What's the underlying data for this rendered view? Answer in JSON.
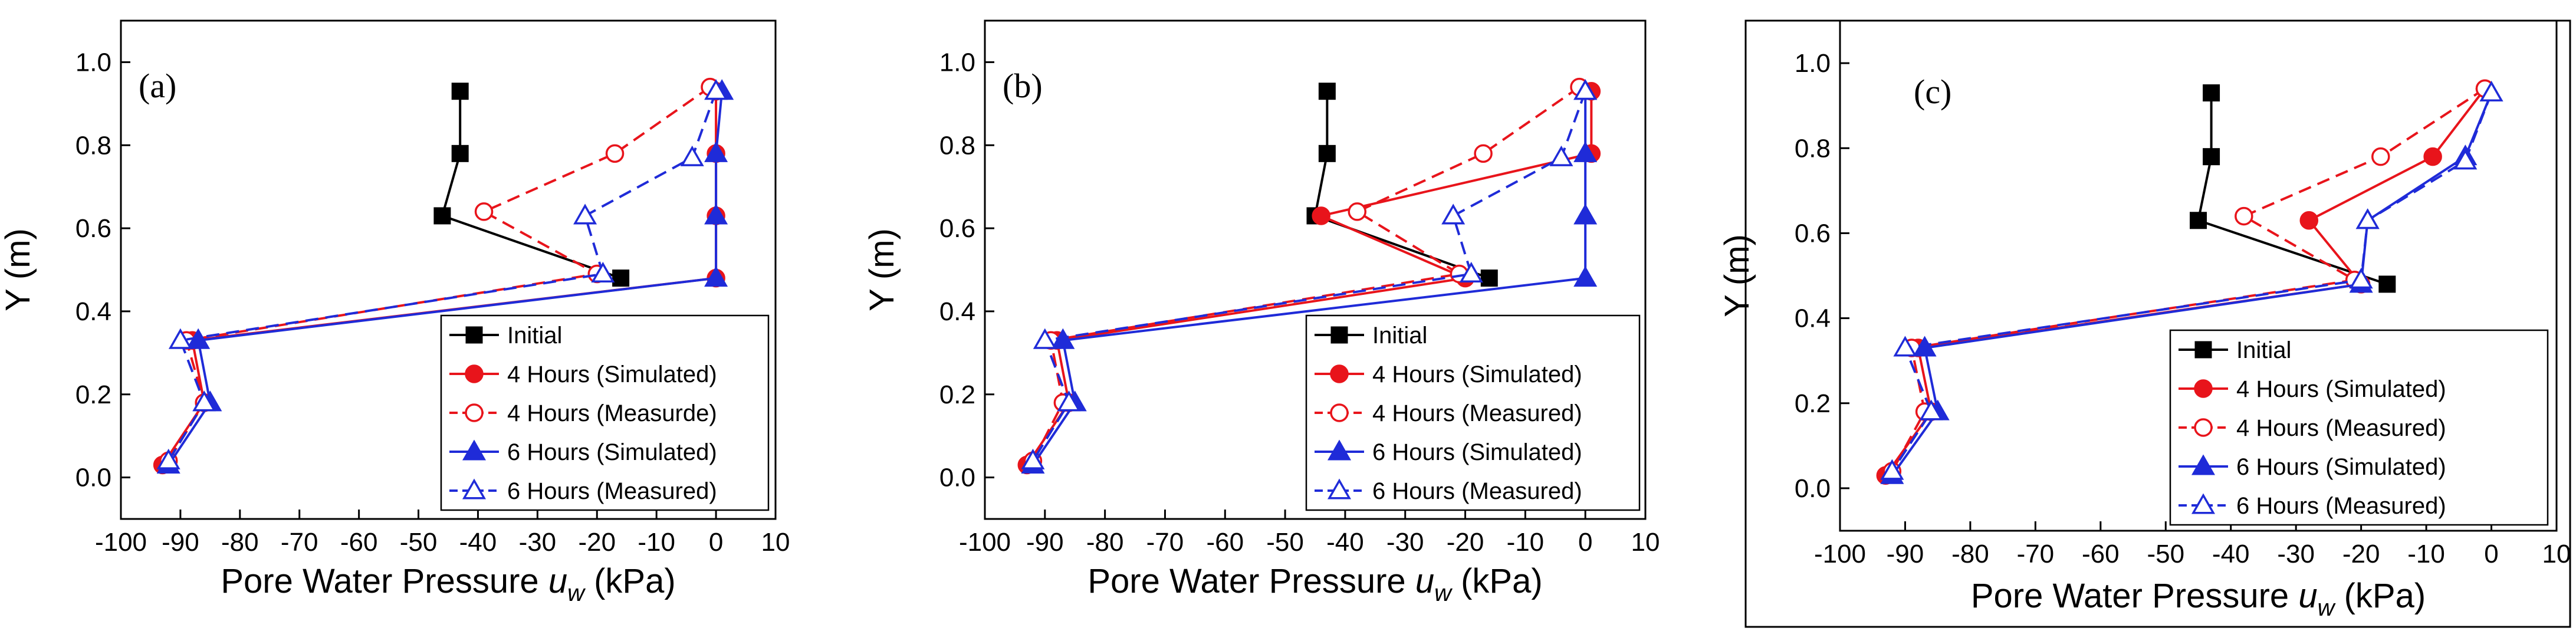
{
  "figure": {
    "panel_c_border_color": "#000000"
  },
  "chart_data": [
    {
      "type": "line",
      "panel_label": "(a)",
      "xlabel": "Pore Water Pressure",
      "xlabel_symbol": "u",
      "xlabel_subscript": "w",
      "xlabel_unit": "(kPa)",
      "ylabel": "Y (m)",
      "xlim": [
        -100,
        10
      ],
      "ylim": [
        -0.1,
        1.1
      ],
      "xticks": [
        "-100",
        "-90",
        "-80",
        "-70",
        "-60",
        "-50",
        "-40",
        "-30",
        "-20",
        "-10",
        "0",
        "10"
      ],
      "xtick_values": [
        -100,
        -90,
        -80,
        -70,
        -60,
        -50,
        -40,
        -30,
        -20,
        -10,
        0,
        10
      ],
      "yticks": [
        "0.0",
        "0.2",
        "0.4",
        "0.6",
        "0.8",
        "1.0"
      ],
      "ytick_values": [
        0.0,
        0.2,
        0.4,
        0.6,
        0.8,
        1.0
      ],
      "legend_position": "bottom-right",
      "series": [
        {
          "name": "Initial",
          "color": "#000000",
          "dash": "solid",
          "marker": "square",
          "filled": true,
          "x": [
            -43,
            -43,
            -46,
            -16
          ],
          "y": [
            0.93,
            0.78,
            0.63,
            0.48
          ]
        },
        {
          "name": "4 Hours (Simulated)",
          "color": "#e8141b",
          "dash": "solid",
          "marker": "circle",
          "filled": true,
          "x": [
            0,
            0,
            0,
            0,
            -88,
            -86,
            -93
          ],
          "y": [
            0.93,
            0.78,
            0.63,
            0.48,
            0.33,
            0.18,
            0.03
          ]
        },
        {
          "name": "4 Hours (Measurde)",
          "color": "#e8141b",
          "dash": "dashed",
          "marker": "circle",
          "filled": false,
          "x": [
            -1,
            -17,
            -39,
            -20,
            -89,
            -86,
            -92
          ],
          "y": [
            0.94,
            0.78,
            0.64,
            0.49,
            0.33,
            0.18,
            0.04
          ]
        },
        {
          "name": "6 Hours (Simulated)",
          "color": "#1f2bd8",
          "dash": "solid",
          "marker": "triangle",
          "filled": true,
          "x": [
            1,
            0,
            0,
            0,
            -87,
            -85,
            -92
          ],
          "y": [
            0.93,
            0.78,
            0.63,
            0.48,
            0.33,
            0.18,
            0.03
          ]
        },
        {
          "name": "6 Hours (Measured)",
          "color": "#1f2bd8",
          "dash": "dashed",
          "marker": "triangle",
          "filled": false,
          "x": [
            0,
            -4,
            -22,
            -19,
            -90,
            -86,
            -92
          ],
          "y": [
            0.93,
            0.77,
            0.63,
            0.49,
            0.33,
            0.18,
            0.04
          ]
        }
      ]
    },
    {
      "type": "line",
      "panel_label": "(b)",
      "xlabel": "Pore Water Pressure",
      "xlabel_symbol": "u",
      "xlabel_subscript": "w",
      "xlabel_unit": "(kPa)",
      "ylabel": "Y (m)",
      "xlim": [
        -100,
        10
      ],
      "ylim": [
        -0.1,
        1.1
      ],
      "xticks": [
        "-100",
        "-90",
        "-80",
        "-70",
        "-60",
        "-50",
        "-40",
        "-30",
        "-20",
        "-10",
        "0",
        "10"
      ],
      "xtick_values": [
        -100,
        -90,
        -80,
        -70,
        -60,
        -50,
        -40,
        -30,
        -20,
        -10,
        0,
        10
      ],
      "yticks": [
        "0.0",
        "0.2",
        "0.4",
        "0.6",
        "0.8",
        "1.0"
      ],
      "ytick_values": [
        0.0,
        0.2,
        0.4,
        0.6,
        0.8,
        1.0
      ],
      "legend_position": "bottom-right",
      "series": [
        {
          "name": "Initial",
          "color": "#000000",
          "dash": "solid",
          "marker": "square",
          "filled": true,
          "x": [
            -43,
            -43,
            -45,
            -16
          ],
          "y": [
            0.93,
            0.78,
            0.63,
            0.48
          ]
        },
        {
          "name": "4 Hours (Simulated)",
          "color": "#e8141b",
          "dash": "solid",
          "marker": "circle",
          "filled": true,
          "x": [
            1,
            1,
            -44,
            -20,
            -88,
            -86,
            -93
          ],
          "y": [
            0.93,
            0.78,
            0.63,
            0.48,
            0.33,
            0.18,
            0.03
          ]
        },
        {
          "name": "4 Hours (Measured)",
          "color": "#e8141b",
          "dash": "dashed",
          "marker": "circle",
          "filled": false,
          "x": [
            -1,
            -17,
            -38,
            -21,
            -89,
            -87,
            -92
          ],
          "y": [
            0.94,
            0.78,
            0.64,
            0.49,
            0.33,
            0.18,
            0.04
          ]
        },
        {
          "name": "6 Hours (Simulated)",
          "color": "#1f2bd8",
          "dash": "solid",
          "marker": "triangle",
          "filled": true,
          "x": [
            0,
            0,
            0,
            0,
            -87,
            -85,
            -92
          ],
          "y": [
            0.93,
            0.78,
            0.63,
            0.48,
            0.33,
            0.18,
            0.03
          ]
        },
        {
          "name": "6 Hours (Measured)",
          "color": "#1f2bd8",
          "dash": "dashed",
          "marker": "triangle",
          "filled": false,
          "x": [
            0,
            -4,
            -22,
            -19,
            -90,
            -86,
            -92
          ],
          "y": [
            0.93,
            0.77,
            0.63,
            0.49,
            0.33,
            0.18,
            0.04
          ]
        }
      ]
    },
    {
      "type": "line",
      "panel_label": "(c)",
      "xlabel": "Pore Water Pressure",
      "xlabel_symbol": "u",
      "xlabel_subscript": "w",
      "xlabel_unit": "(kPa)",
      "ylabel": "Y (m)",
      "xlim": [
        -100,
        10
      ],
      "ylim": [
        -0.1,
        1.1
      ],
      "xticks": [
        "-100",
        "-90",
        "-80",
        "-70",
        "-60",
        "-50",
        "-40",
        "-30",
        "-20",
        "-10",
        "0",
        "10"
      ],
      "xtick_values": [
        -100,
        -90,
        -80,
        -70,
        -60,
        -50,
        -40,
        -30,
        -20,
        -10,
        0,
        10
      ],
      "yticks": [
        "0.0",
        "0.2",
        "0.4",
        "0.6",
        "0.8",
        "1.0"
      ],
      "ytick_values": [
        0.0,
        0.2,
        0.4,
        0.6,
        0.8,
        1.0
      ],
      "legend_position": "bottom-right",
      "series": [
        {
          "name": "Initial",
          "color": "#000000",
          "dash": "solid",
          "marker": "square",
          "filled": true,
          "x": [
            -43,
            -43,
            -45,
            -16
          ],
          "y": [
            0.93,
            0.78,
            0.63,
            0.48
          ]
        },
        {
          "name": "4 Hours (Simulated)",
          "color": "#e8141b",
          "dash": "solid",
          "marker": "circle",
          "filled": true,
          "x": [
            -1,
            -9,
            -28,
            -20,
            -88,
            -86,
            -93
          ],
          "y": [
            0.94,
            0.78,
            0.63,
            0.48,
            0.33,
            0.18,
            0.03
          ]
        },
        {
          "name": "4 Hours (Measured)",
          "color": "#e8141b",
          "dash": "dashed",
          "marker": "circle",
          "filled": false,
          "x": [
            -1,
            -17,
            -38,
            -21,
            -89,
            -87,
            -92
          ],
          "y": [
            0.94,
            0.78,
            0.64,
            0.49,
            0.33,
            0.18,
            0.04
          ]
        },
        {
          "name": "6 Hours (Simulated)",
          "color": "#1f2bd8",
          "dash": "solid",
          "marker": "triangle",
          "filled": true,
          "x": [
            0,
            -4,
            -19,
            -20,
            -87,
            -85,
            -92
          ],
          "y": [
            0.93,
            0.78,
            0.63,
            0.48,
            0.33,
            0.18,
            0.03
          ]
        },
        {
          "name": "6 Hours (Measured)",
          "color": "#1f2bd8",
          "dash": "dashed",
          "marker": "triangle",
          "filled": false,
          "x": [
            0,
            -4,
            -19,
            -20,
            -90,
            -86,
            -92
          ],
          "y": [
            0.93,
            0.77,
            0.63,
            0.49,
            0.33,
            0.18,
            0.04
          ]
        }
      ]
    }
  ]
}
